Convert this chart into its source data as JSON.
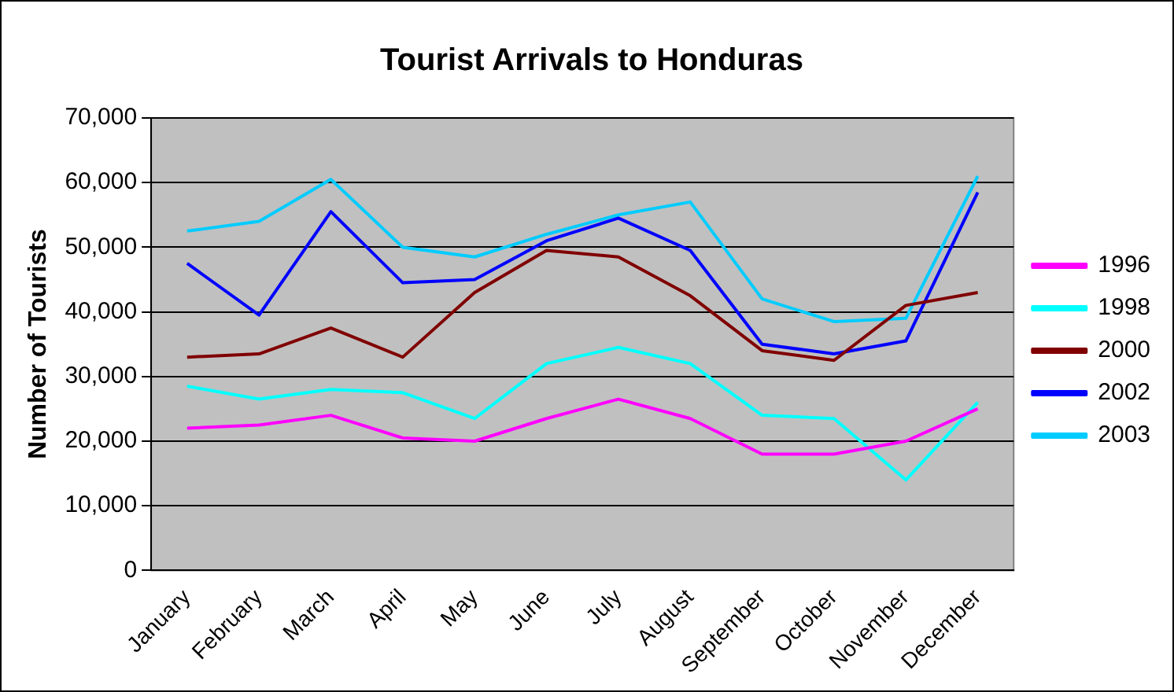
{
  "chart_data": {
    "type": "line",
    "title": "Tourist Arrivals to Honduras",
    "ylabel": "Number of Tourists",
    "categories": [
      "January",
      "February",
      "March",
      "April",
      "May",
      "June",
      "July",
      "August",
      "September",
      "October",
      "November",
      "December"
    ],
    "ylim": [
      0,
      70000
    ],
    "yticks": [
      {
        "value": 0,
        "label": "0"
      },
      {
        "value": 10000,
        "label": "10,000"
      },
      {
        "value": 20000,
        "label": "20,000"
      },
      {
        "value": 30000,
        "label": "30,000"
      },
      {
        "value": 40000,
        "label": "40,000"
      },
      {
        "value": 50000,
        "label": "50,000"
      },
      {
        "value": 60000,
        "label": "60,000"
      },
      {
        "value": 70000,
        "label": "70,000"
      }
    ],
    "grid": "y",
    "legend": "right",
    "marker": "none",
    "line_style": "solid",
    "series": [
      {
        "name": "1996",
        "color": "#ff00ff",
        "values": [
          22000,
          22500,
          24000,
          20500,
          20000,
          23500,
          26500,
          23500,
          18000,
          18000,
          20000,
          25000
        ]
      },
      {
        "name": "1998",
        "color": "#00ffff",
        "values": [
          28500,
          26500,
          28000,
          27500,
          23500,
          32000,
          34500,
          32000,
          24000,
          23500,
          14000,
          26000
        ]
      },
      {
        "name": "2000",
        "color": "#800000",
        "values": [
          33000,
          33500,
          37500,
          33000,
          43000,
          49500,
          48500,
          42500,
          34000,
          32500,
          41000,
          43000
        ]
      },
      {
        "name": "2002",
        "color": "#0000ff",
        "values": [
          47500,
          39500,
          55500,
          44500,
          45000,
          51000,
          54500,
          49500,
          35000,
          33500,
          35500,
          58500
        ]
      },
      {
        "name": "2003",
        "color": "#00ccff",
        "values": [
          52500,
          54000,
          60500,
          50000,
          48500,
          52000,
          55000,
          57000,
          42000,
          38500,
          39000,
          61000
        ]
      }
    ]
  }
}
